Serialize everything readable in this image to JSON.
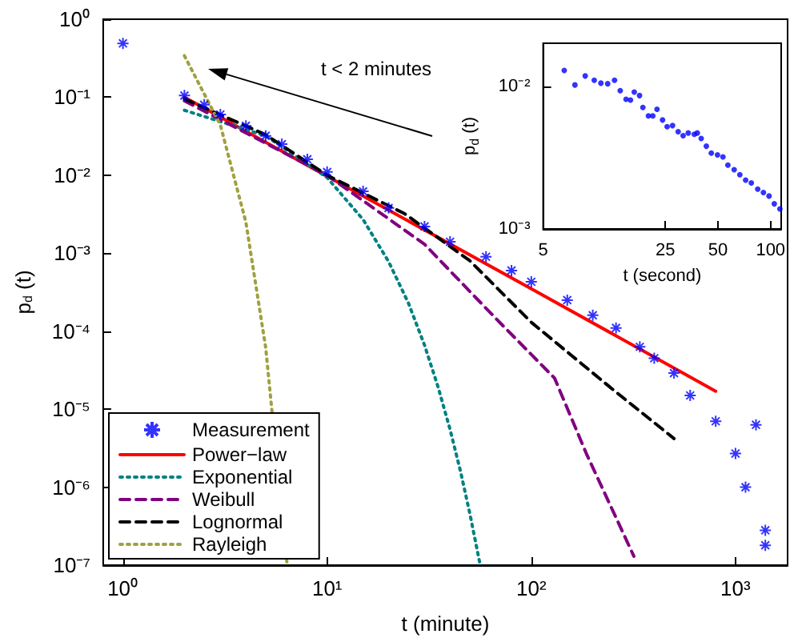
{
  "chart_data": [
    {
      "type": "line",
      "xlabel": "t (minute)",
      "ylabel": "p$_{d}$ (t)",
      "log": "xy",
      "grid": false,
      "legend": "bottom left",
      "xlim": [
        0.8,
        1800
      ],
      "xticks": [
        {
          "value": 1,
          "label": "10⁰"
        },
        {
          "value": 10,
          "label": "10¹"
        },
        {
          "value": 100,
          "label": "10²"
        },
        {
          "value": 1000,
          "label": "10³"
        }
      ],
      "ylim": [
        1e-07,
        1
      ],
      "yticks": [
        {
          "value": 1e-07,
          "label": "10⁻⁷"
        },
        {
          "value": 1e-06,
          "label": "10⁻⁶"
        },
        {
          "value": 1e-05,
          "label": "10⁻⁵"
        },
        {
          "value": 0.0001,
          "label": "10⁻⁴"
        },
        {
          "value": 0.001,
          "label": "10⁻³"
        },
        {
          "value": 0.01,
          "label": "10⁻²"
        },
        {
          "value": 0.1,
          "label": "10⁻¹"
        },
        {
          "value": 1,
          "label": "10⁰"
        }
      ],
      "annotations": [
        "t < 2 minutes"
      ],
      "series": [
        {
          "name": "Measurement",
          "type": "scatter",
          "marker": "cross",
          "color": "#0000ff",
          "x": [
            1,
            2,
            2.5,
            3,
            4,
            5,
            6,
            8,
            10,
            15,
            20,
            30,
            40,
            60,
            80,
            100,
            150,
            200,
            260,
            340,
            400,
            500,
            600,
            800,
            1000,
            1120,
            1260,
            1400,
            1400
          ],
          "values": [
            0.49,
            0.105,
            0.08,
            0.06,
            0.043,
            0.032,
            0.025,
            0.016,
            0.011,
            0.0062,
            0.0038,
            0.0022,
            0.0014,
            0.0009,
            0.0006,
            0.00043,
            0.00025,
            0.00016,
            0.00011,
            6.3e-05,
            4.5e-05,
            2.9e-05,
            1.5e-05,
            7e-06,
            2.7e-06,
            1e-06,
            6.3e-06,
            2.8e-07,
            1.8e-07
          ]
        },
        {
          "name": "Power−law",
          "marker": "none",
          "line_style": "solid",
          "color": "#ff0000",
          "x": [
            2,
            10,
            100,
            800
          ],
          "values": [
            0.1,
            0.0097,
            0.00035,
            1.7e-05
          ]
        },
        {
          "name": "Exponential",
          "marker": "none",
          "line_style": "dotted",
          "color": "#008080",
          "x": [
            2,
            5,
            10,
            15,
            20,
            25,
            30,
            35,
            40,
            45,
            50,
            56
          ],
          "values": [
            0.068,
            0.032,
            0.0093,
            0.0027,
            0.00078,
            0.00023,
            6.6e-05,
            1.9e-05,
            5.5e-06,
            1.6e-06,
            4.6e-07,
            1.05e-07
          ]
        },
        {
          "name": "Weibull",
          "marker": "none",
          "line_style": "dashed",
          "color": "#800080",
          "x": [
            2,
            10,
            30,
            68,
            130,
            186,
            318
          ],
          "values": [
            0.09,
            0.01,
            0.0013,
            0.00014,
            2.5e-05,
            2.7e-06,
            1.3e-07
          ]
        },
        {
          "name": "Lognormal",
          "marker": "none",
          "line_style": "dashed",
          "color": "#000000",
          "x": [
            2,
            5,
            10,
            24,
            50,
            100,
            250,
            500
          ],
          "values": [
            0.095,
            0.033,
            0.01,
            0.0032,
            0.0008,
            0.00013,
            1.8e-05,
            4.2e-06
          ]
        },
        {
          "name": "Rayleigh",
          "marker": "none",
          "line_style": "dotted",
          "color": "#a0a040",
          "x": [
            2,
            3,
            4,
            5,
            5.5,
            6,
            6.35
          ],
          "values": [
            0.34,
            0.044,
            0.0025,
            6.2e-05,
            null,
            null,
            1.1e-07
          ]
        }
      ]
    },
    {
      "type": "scatter",
      "xlabel": "t (second)",
      "ylabel": "p$_{d}$ (t)",
      "log": "xy",
      "grid": false,
      "marker": "circle",
      "xlim": [
        5,
        115
      ],
      "xticks": [
        5,
        25,
        50,
        100
      ],
      "ylim": [
        0.001,
        0.02
      ],
      "yticks": [
        {
          "value": 0.001,
          "label": "10⁻³"
        },
        {
          "value": 0.01,
          "label": "10⁻²"
        }
      ],
      "series": [
        {
          "color": "#0000ff",
          "x": [
            6.6,
            7.6,
            8.7,
            9.8,
            10.7,
            11.7,
            12.8,
            13.8,
            14.9,
            15.8,
            16.6,
            17.8,
            18.6,
            20,
            21.2,
            22.4,
            24.1,
            25.6,
            27.5,
            29.6,
            31.6,
            33.8,
            36.6,
            38.1,
            40.1,
            42.9,
            45.8,
            49.7,
            53.4,
            57,
            61.9,
            66.7,
            72,
            77.6,
            84.4,
            91,
            98,
            105,
            113
          ],
          "values": [
            0.0129,
            0.0102,
            0.0118,
            0.011,
            0.0105,
            0.0104,
            0.011,
            0.0093,
            0.0081,
            0.008,
            0.0091,
            0.0086,
            0.0071,
            0.0062,
            0.0062,
            0.0069,
            0.0058,
            0.0052,
            0.0053,
            0.0048,
            0.0045,
            0.0047,
            0.0046,
            0.0047,
            0.0043,
            0.0038,
            0.0034,
            0.0033,
            0.0032,
            0.0028,
            0.0026,
            0.0024,
            0.0022,
            0.0021,
            0.0019,
            0.0018,
            0.0017,
            0.0015,
            0.00138
          ]
        }
      ]
    }
  ]
}
